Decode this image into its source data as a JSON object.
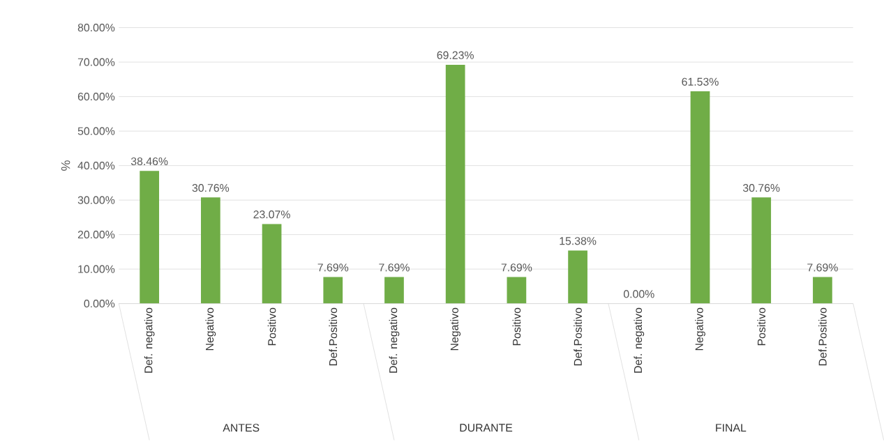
{
  "chart_data": {
    "type": "bar",
    "ylabel": "%",
    "categories": [
      "Def. negativo",
      "Negativo",
      "Positivo",
      "Def.Positivo",
      "Def. negativo",
      "Negativo",
      "Positivo",
      "Def.Positivo",
      "Def. negativo",
      "Negativo",
      "Positivo",
      "Def.Positivo"
    ],
    "values": [
      38.46,
      30.76,
      23.07,
      7.69,
      7.69,
      69.23,
      7.69,
      15.38,
      0.0,
      61.53,
      30.76,
      7.69
    ],
    "value_labels": [
      "38.46%",
      "30.76%",
      "23.07%",
      "7.69%",
      "7.69%",
      "69.23%",
      "7.69%",
      "15.38%",
      "0.00%",
      "61.53%",
      "30.76%",
      "7.69%"
    ],
    "color": "#70ad47",
    "ylim": [
      0,
      80
    ],
    "yticks": [
      {
        "value": 0,
        "label": "0.00%"
      },
      {
        "value": 10,
        "label": "10.00%"
      },
      {
        "value": 20,
        "label": "20.00%"
      },
      {
        "value": 30,
        "label": "30.00%"
      },
      {
        "value": 40,
        "label": "40.00%"
      },
      {
        "value": 50,
        "label": "50.00%"
      },
      {
        "value": 60,
        "label": "60.00%"
      },
      {
        "value": 70,
        "label": "70.00%"
      },
      {
        "value": 80,
        "label": "80.00%"
      }
    ],
    "grid": "y",
    "annotations": [
      "ANTES",
      "DURANTE",
      "FINAL"
    ]
  }
}
